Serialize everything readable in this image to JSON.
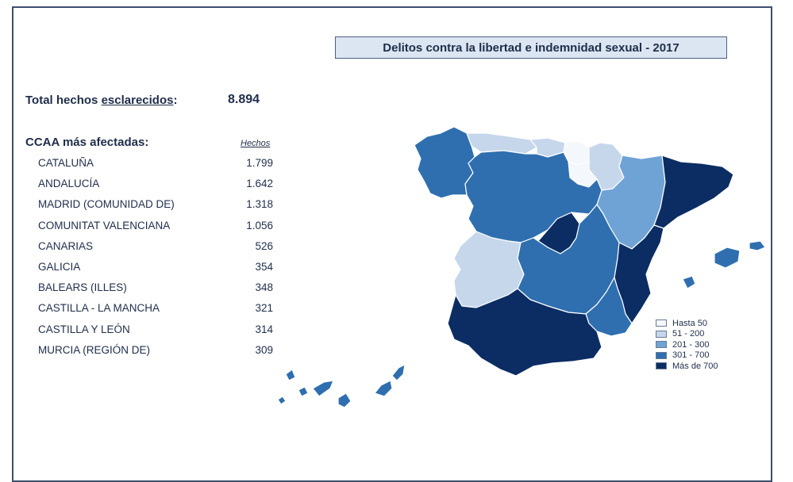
{
  "title": "Delitos contra la libertad e indemnidad sexual - 2017",
  "total": {
    "label_prefix": "Total hechos ",
    "label_underlined": "esclarecidos",
    "label_suffix": ":",
    "value": "8.894"
  },
  "ccaa": {
    "label": "CCAA más afectadas:",
    "column_header": "Hechos",
    "rows": [
      {
        "name": "CATALUÑA",
        "value": "1.799"
      },
      {
        "name": "ANDALUCÍA",
        "value": "1.642"
      },
      {
        "name": "MADRID (COMUNIDAD DE)",
        "value": "1.318"
      },
      {
        "name": "COMUNITAT VALENCIANA",
        "value": "1.056"
      },
      {
        "name": "CANARIAS",
        "value": "526"
      },
      {
        "name": "GALICIA",
        "value": "354"
      },
      {
        "name": "BALEARS (ILLES)",
        "value": "348"
      },
      {
        "name": "CASTILLA - LA MANCHA",
        "value": "321"
      },
      {
        "name": "CASTILLA Y LEÓN",
        "value": "314"
      },
      {
        "name": "MURCIA (REGIÓN DE)",
        "value": "309"
      }
    ]
  },
  "legend": [
    {
      "label": "Hasta 50",
      "color": "#f4f7fc"
    },
    {
      "label": "51 - 200",
      "color": "#c6d7ec"
    },
    {
      "label": "201 - 300",
      "color": "#6fa3d6"
    },
    {
      "label": "301 - 700",
      "color": "#2f6fb0"
    },
    {
      "label": "Más de 700",
      "color": "#0b2d63"
    }
  ],
  "regions": {
    "galicia": {
      "range": "301 - 700"
    },
    "asturias": {
      "range": "51 - 200"
    },
    "cantabria": {
      "range": "51 - 200"
    },
    "pais_vasco": {
      "range": "Hasta 50"
    },
    "navarra": {
      "range": "51 - 200"
    },
    "la_rioja": {
      "range": "Hasta 50"
    },
    "aragon": {
      "range": "201 - 300"
    },
    "cataluna": {
      "range": "Más de 700"
    },
    "castilla_leon": {
      "range": "301 - 700"
    },
    "madrid": {
      "range": "Más de 700"
    },
    "castilla_la_mancha": {
      "range": "301 - 700"
    },
    "comunitat_valenciana": {
      "range": "Más de 700"
    },
    "extremadura": {
      "range": "51 - 200"
    },
    "andalucia": {
      "range": "Más de 700"
    },
    "murcia": {
      "range": "301 - 700"
    },
    "baleares": {
      "range": "301 - 700"
    },
    "canarias": {
      "range": "301 - 700"
    }
  }
}
